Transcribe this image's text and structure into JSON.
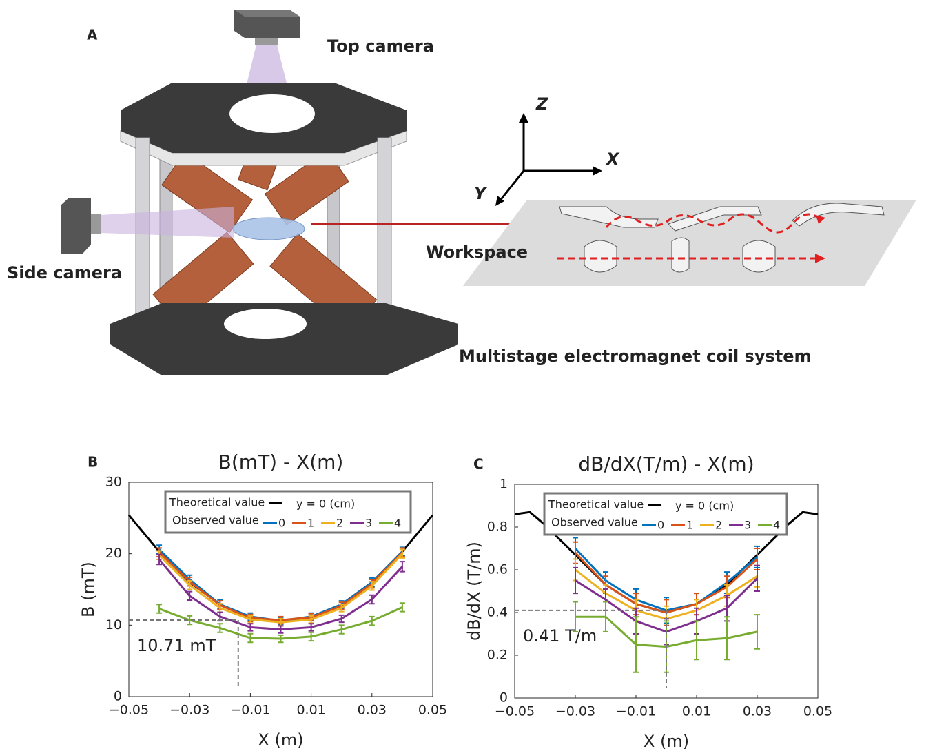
{
  "diagram": {
    "panel_label": "A",
    "top_camera": "Top camera",
    "side_camera": "Side camera",
    "workspace": "Workspace",
    "system": "Multistage electromagnet coil system",
    "axes": {
      "z": "Z",
      "x": "X",
      "y": "Y"
    }
  },
  "chart_data": [
    {
      "type": "line",
      "panel_label": "B",
      "title": "B(mT) - X(m)",
      "x_label": "X (m)",
      "y_label": "B (mT)",
      "xlim": [
        -0.05,
        0.05
      ],
      "xticks": [
        {
          "value": -0.05,
          "label": "−0.05"
        },
        {
          "value": -0.03,
          "label": "−0.03"
        },
        {
          "value": -0.01,
          "label": "−0.01"
        },
        0.01,
        0.03,
        0.05
      ],
      "ylim": [
        0,
        30
      ],
      "yticks": [
        0,
        10,
        20,
        30
      ],
      "legend_header": "y  = 0 (cm)",
      "legend_group": "Observed value",
      "x": [
        -0.04,
        -0.03,
        -0.02,
        -0.01,
        0,
        0.01,
        0.02,
        0.03,
        0.04
      ],
      "series": [
        {
          "name": "Theoretical value",
          "color": "#000000",
          "x": [
            -0.05,
            -0.04,
            -0.03,
            -0.02,
            -0.01,
            0,
            0.01,
            0.02,
            0.03,
            0.04,
            0.05
          ],
          "values": [
            25.4,
            20.3,
            16.0,
            12.9,
            11.1,
            10.6,
            11.1,
            12.9,
            16.0,
            20.3,
            25.4
          ]
        },
        {
          "name": "0",
          "color": "#0072bd",
          "values": [
            20.6,
            16.4,
            12.9,
            11.2,
            10.6,
            11.2,
            12.9,
            16.0,
            20.3
          ],
          "errors": [
            0.6,
            0.6,
            0.6,
            0.5,
            0.5,
            0.5,
            0.5,
            0.6,
            0.6
          ]
        },
        {
          "name": "1",
          "color": "#d95319",
          "values": [
            20.2,
            16.1,
            12.8,
            11.0,
            10.7,
            11.1,
            12.7,
            15.8,
            20.2
          ],
          "errors": [
            0.6,
            0.6,
            0.6,
            0.5,
            0.5,
            0.5,
            0.5,
            0.6,
            0.6
          ]
        },
        {
          "name": "2",
          "color": "#edb120",
          "values": [
            19.8,
            15.6,
            12.4,
            10.8,
            10.4,
            10.8,
            12.4,
            15.5,
            20.0
          ],
          "errors": [
            0.6,
            0.6,
            0.6,
            0.5,
            0.5,
            0.5,
            0.5,
            0.6,
            0.6
          ]
        },
        {
          "name": "3",
          "color": "#7e2f8e",
          "values": [
            19.2,
            14.1,
            11.2,
            9.7,
            9.4,
            9.7,
            10.9,
            13.6,
            18.2
          ],
          "errors": [
            0.7,
            0.6,
            0.6,
            0.5,
            0.5,
            0.5,
            0.5,
            0.6,
            0.7
          ]
        },
        {
          "name": "4",
          "color": "#77ac30",
          "values": [
            12.3,
            10.7,
            9.6,
            8.2,
            8.1,
            8.4,
            9.4,
            10.6,
            12.5
          ],
          "errors": [
            0.6,
            0.6,
            0.6,
            0.6,
            0.5,
            0.6,
            0.6,
            0.6,
            0.6
          ]
        }
      ],
      "reference": {
        "x": -0.014,
        "y": 10.71,
        "label": "10.71 mT"
      }
    },
    {
      "type": "line",
      "panel_label": "C",
      "title": "dB/dX(T/m) - X(m)",
      "x_label": "X (m)",
      "y_label": "dB/dX (T/m)",
      "xlim": [
        -0.05,
        0.05
      ],
      "xticks": [
        {
          "value": -0.05,
          "label": "−0.05"
        },
        {
          "value": -0.03,
          "label": "−0.03"
        },
        {
          "value": -0.01,
          "label": "−0.01"
        },
        0.01,
        0.03,
        0.05
      ],
      "ylim": [
        0,
        1
      ],
      "yticks": [
        0,
        0.2,
        0.4,
        0.6,
        0.8,
        1
      ],
      "legend_header": "y  = 0 (cm)",
      "legend_group": "Observed value",
      "x": [
        -0.03,
        -0.02,
        -0.01,
        0,
        0.01,
        0.02,
        0.03
      ],
      "series": [
        {
          "name": "Theoretical value",
          "color": "#000000",
          "x": [
            -0.05,
            -0.045,
            -0.04,
            -0.03,
            -0.02,
            -0.01,
            0,
            0.01,
            0.02,
            0.03,
            0.04,
            0.045,
            0.05
          ],
          "values": [
            0.86,
            0.87,
            0.81,
            0.67,
            0.53,
            0.44,
            0.4,
            0.44,
            0.53,
            0.67,
            0.81,
            0.87,
            0.86
          ]
        },
        {
          "name": "0",
          "color": "#0072bd",
          "values": [
            0.7,
            0.55,
            0.46,
            0.41,
            0.44,
            0.54,
            0.66
          ],
          "errors": [
            0.05,
            0.04,
            0.05,
            0.06,
            0.05,
            0.05,
            0.05
          ]
        },
        {
          "name": "1",
          "color": "#d95319",
          "values": [
            0.68,
            0.53,
            0.44,
            0.4,
            0.44,
            0.52,
            0.65
          ],
          "errors": [
            0.05,
            0.04,
            0.05,
            0.06,
            0.05,
            0.05,
            0.05
          ]
        },
        {
          "name": "2",
          "color": "#edb120",
          "values": [
            0.6,
            0.49,
            0.41,
            0.37,
            0.41,
            0.48,
            0.57
          ],
          "errors": [
            0.05,
            0.04,
            0.05,
            0.06,
            0.05,
            0.05,
            0.05
          ]
        },
        {
          "name": "3",
          "color": "#7e2f8e",
          "values": [
            0.55,
            0.46,
            0.36,
            0.31,
            0.36,
            0.42,
            0.56
          ],
          "errors": [
            0.06,
            0.05,
            0.06,
            0.06,
            0.06,
            0.06,
            0.06
          ]
        },
        {
          "name": "4",
          "color": "#77ac30",
          "values": [
            0.38,
            0.38,
            0.25,
            0.24,
            0.27,
            0.28,
            0.31
          ],
          "errors": [
            0.07,
            0.07,
            0.13,
            0.12,
            0.09,
            0.1,
            0.08
          ]
        }
      ],
      "reference": {
        "x": 0,
        "y": 0.41,
        "label": "0.41 T/m"
      }
    }
  ]
}
